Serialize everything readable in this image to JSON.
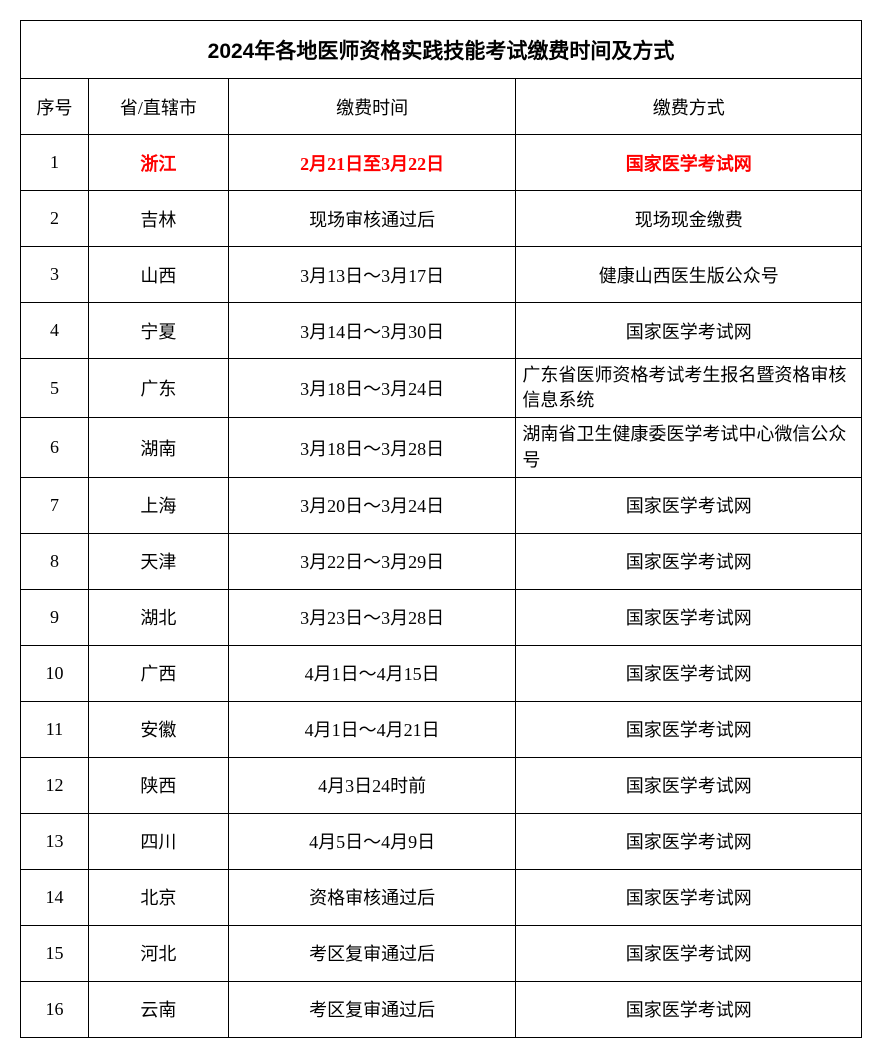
{
  "title": "2024年各地医师资格实践技能考试缴费时间及方式",
  "headers": {
    "seq": "序号",
    "province": "省/直辖市",
    "time": "缴费时间",
    "method": "缴费方式"
  },
  "highlight_color": "#ff0000",
  "rows": [
    {
      "seq": "1",
      "province": "浙江",
      "time": "2月21日至3月22日",
      "method": "国家医学考试网",
      "highlight": true
    },
    {
      "seq": "2",
      "province": "吉林",
      "time": "现场审核通过后",
      "method": "现场现金缴费"
    },
    {
      "seq": "3",
      "province": "山西",
      "time": "3月13日～3月17日",
      "method": "健康山西医生版公众号"
    },
    {
      "seq": "4",
      "province": "宁夏",
      "time": "3月14日～3月30日",
      "method": "国家医学考试网"
    },
    {
      "seq": "5",
      "province": "广东",
      "time": "3月18日～3月24日",
      "method": "广东省医师资格考试考生报名暨资格审核信息系统",
      "multiline": true
    },
    {
      "seq": "6",
      "province": "湖南",
      "time": "3月18日～3月28日",
      "method": "湖南省卫生健康委医学考试中心微信公众号",
      "multiline": true
    },
    {
      "seq": "7",
      "province": "上海",
      "time": "3月20日～3月24日",
      "method": "国家医学考试网"
    },
    {
      "seq": "8",
      "province": "天津",
      "time": "3月22日～3月29日",
      "method": "国家医学考试网"
    },
    {
      "seq": "9",
      "province": "湖北",
      "time": "3月23日～3月28日",
      "method": "国家医学考试网"
    },
    {
      "seq": "10",
      "province": "广西",
      "time": "4月1日～4月15日",
      "method": "国家医学考试网"
    },
    {
      "seq": "11",
      "province": "安徽",
      "time": "4月1日～4月21日",
      "method": "国家医学考试网"
    },
    {
      "seq": "12",
      "province": "陕西",
      "time": "4月3日24时前",
      "method": "国家医学考试网"
    },
    {
      "seq": "13",
      "province": "四川",
      "time": "4月5日～4月9日",
      "method": "国家医学考试网"
    },
    {
      "seq": "14",
      "province": "北京",
      "time": "资格审核通过后",
      "method": "国家医学考试网"
    },
    {
      "seq": "15",
      "province": "河北",
      "time": "考区复审通过后",
      "method": "国家医学考试网"
    },
    {
      "seq": "16",
      "province": "云南",
      "time": "考区复审通过后",
      "method": "国家医学考试网"
    }
  ]
}
